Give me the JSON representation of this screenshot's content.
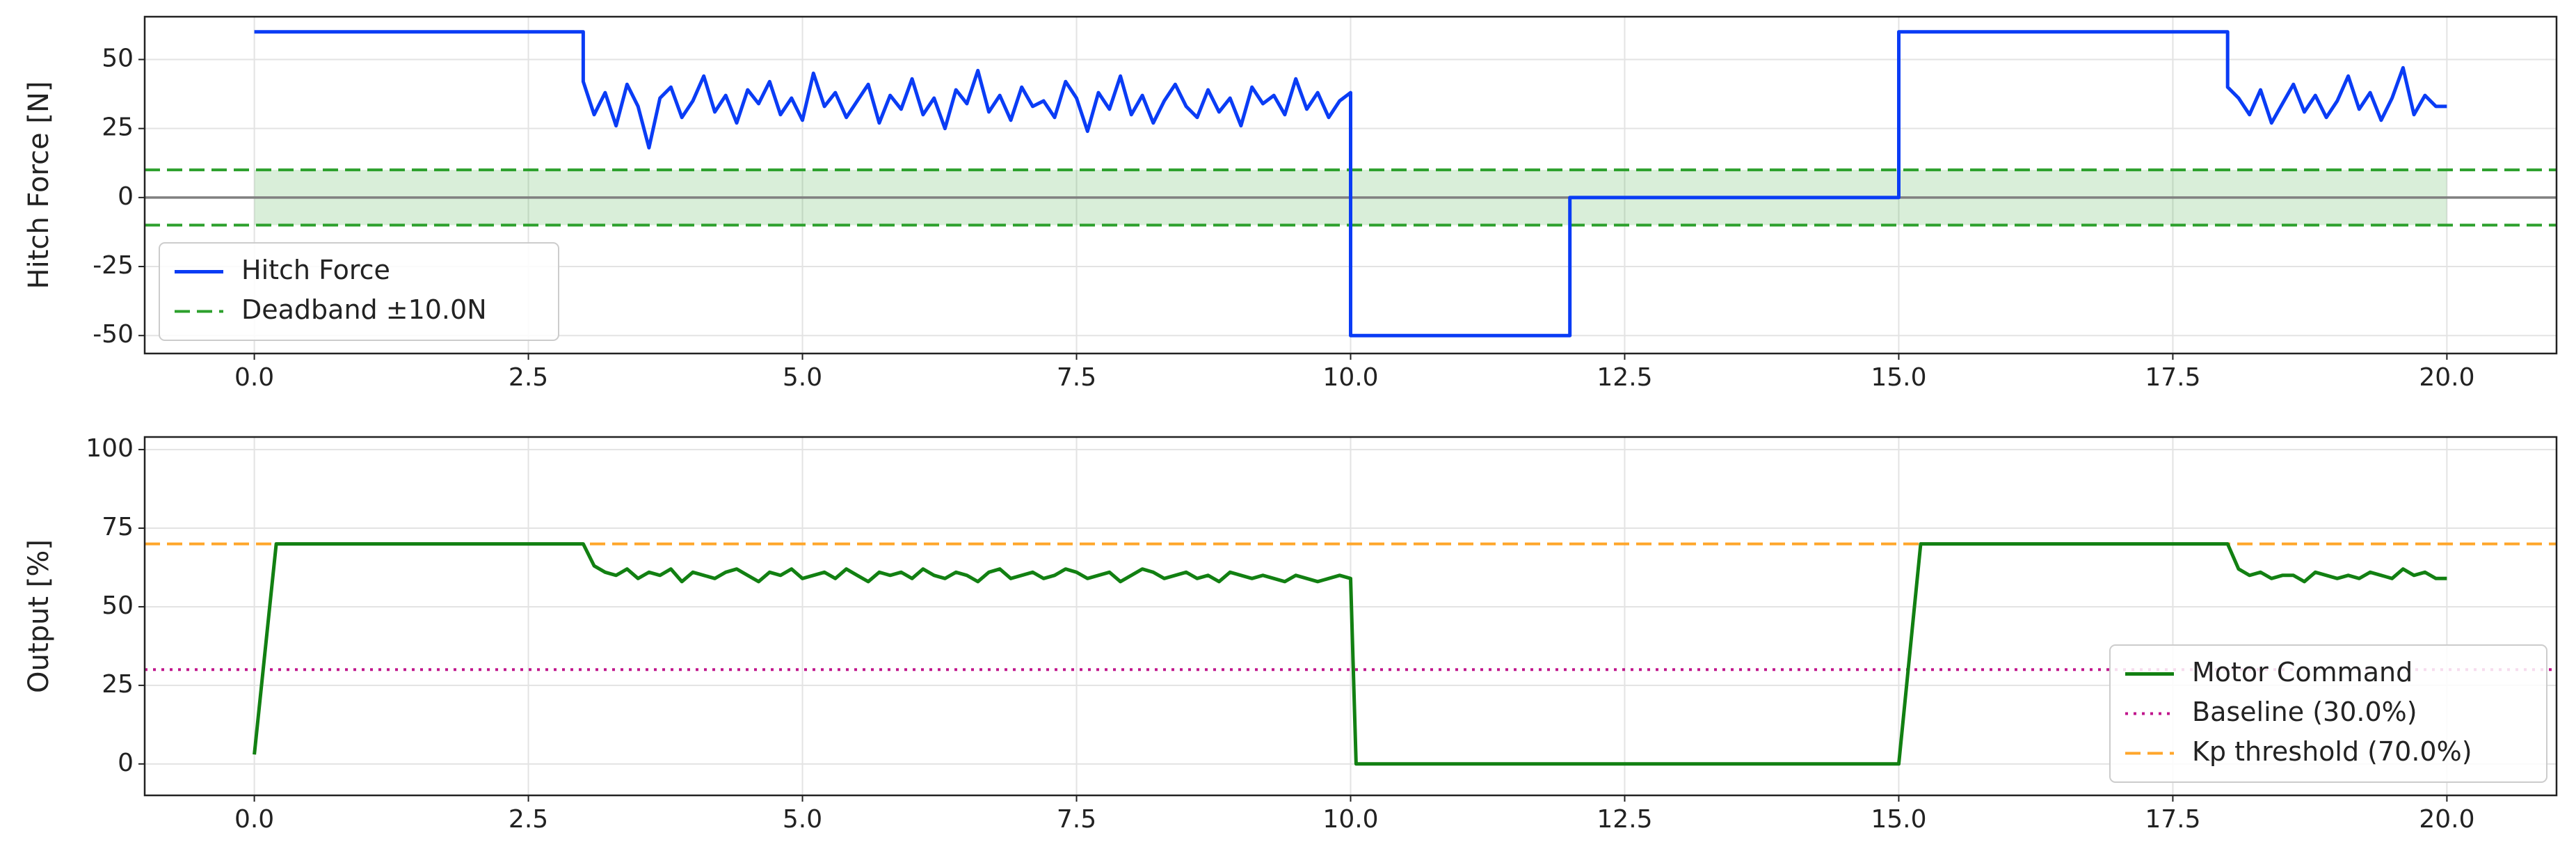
{
  "chart_data": [
    {
      "type": "line",
      "ylabel": "Hitch Force [N]",
      "x": [
        0,
        3,
        3,
        3.1,
        3.2,
        3.3,
        3.4,
        3.5,
        3.6,
        3.7,
        3.8,
        3.9,
        4.0,
        4.1,
        4.2,
        4.3,
        4.4,
        4.5,
        4.6,
        4.7,
        4.8,
        4.9,
        5.0,
        5.1,
        5.2,
        5.3,
        5.4,
        5.5,
        5.6,
        5.7,
        5.8,
        5.9,
        6.0,
        6.1,
        6.2,
        6.3,
        6.4,
        6.5,
        6.6,
        6.7,
        6.8,
        6.9,
        7.0,
        7.1,
        7.2,
        7.3,
        7.4,
        7.5,
        7.6,
        7.7,
        7.8,
        7.9,
        8.0,
        8.1,
        8.2,
        8.3,
        8.4,
        8.5,
        8.6,
        8.7,
        8.8,
        8.9,
        9.0,
        9.1,
        9.2,
        9.3,
        9.4,
        9.5,
        9.6,
        9.7,
        9.8,
        9.9,
        10,
        10,
        12,
        12,
        15,
        15,
        18,
        18,
        18.1,
        18.2,
        18.3,
        18.4,
        18.5,
        18.6,
        18.7,
        18.8,
        18.9,
        19.0,
        19.1,
        19.2,
        19.3,
        19.4,
        19.5,
        19.6,
        19.7,
        19.8,
        19.9,
        20.0
      ],
      "series": [
        {
          "name": "Hitch Force",
          "color": "#0a3cf5",
          "values": [
            60,
            60,
            42,
            30,
            38,
            26,
            41,
            33,
            18,
            36,
            40,
            29,
            35,
            44,
            31,
            37,
            27,
            39,
            34,
            42,
            30,
            36,
            28,
            45,
            33,
            38,
            29,
            35,
            41,
            27,
            37,
            32,
            43,
            30,
            36,
            25,
            39,
            34,
            46,
            31,
            37,
            28,
            40,
            33,
            35,
            29,
            42,
            36,
            24,
            38,
            32,
            44,
            30,
            37,
            27,
            35,
            41,
            33,
            29,
            39,
            31,
            36,
            26,
            40,
            34,
            37,
            30,
            43,
            32,
            38,
            29,
            35,
            38,
            -50,
            -50,
            0,
            0,
            60,
            60,
            40,
            36,
            30,
            39,
            27,
            34,
            41,
            31,
            37,
            29,
            35,
            44,
            32,
            38,
            28,
            36,
            47,
            30,
            37,
            33,
            33
          ]
        }
      ],
      "refs": [
        {
          "value": 0,
          "color": "#808080",
          "style": "solid"
        },
        {
          "name": "Deadband ±10.0N",
          "color": "#2ca02c",
          "style": "dashed",
          "values": [
            -10,
            10
          ],
          "fill": true
        }
      ],
      "xlim": [
        -1,
        21
      ],
      "ylim": [
        -56.5,
        65.5
      ],
      "xticks": [
        {
          "value": 0,
          "label": "0.0"
        },
        {
          "value": 2.5,
          "label": "2.5"
        },
        {
          "value": 5,
          "label": "5.0"
        },
        {
          "value": 7.5,
          "label": "7.5"
        },
        {
          "value": 10,
          "label": "10.0"
        },
        {
          "value": 12.5,
          "label": "12.5"
        },
        {
          "value": 15,
          "label": "15.0"
        },
        {
          "value": 17.5,
          "label": "17.5"
        },
        {
          "value": 20,
          "label": "20.0"
        }
      ],
      "yticks": [
        -50,
        -25,
        0,
        25,
        50
      ],
      "grid": true,
      "legend": "lower left"
    },
    {
      "type": "line",
      "ylabel": "Output [%]",
      "x": [
        0,
        0.2,
        3.0,
        3.1,
        3.2,
        3.3,
        3.4,
        3.5,
        3.6,
        3.7,
        3.8,
        3.9,
        4.0,
        4.1,
        4.2,
        4.3,
        4.4,
        4.5,
        4.6,
        4.7,
        4.8,
        4.9,
        5.0,
        5.1,
        5.2,
        5.3,
        5.4,
        5.5,
        5.6,
        5.7,
        5.8,
        5.9,
        6.0,
        6.1,
        6.2,
        6.3,
        6.4,
        6.5,
        6.6,
        6.7,
        6.8,
        6.9,
        7.0,
        7.1,
        7.2,
        7.3,
        7.4,
        7.5,
        7.6,
        7.7,
        7.8,
        7.9,
        8.0,
        8.1,
        8.2,
        8.3,
        8.4,
        8.5,
        8.6,
        8.7,
        8.8,
        8.9,
        9.0,
        9.1,
        9.2,
        9.3,
        9.4,
        9.5,
        9.6,
        9.7,
        9.8,
        9.9,
        10.0,
        10.05,
        15.0,
        15.2,
        18.0,
        18.1,
        18.2,
        18.3,
        18.4,
        18.5,
        18.6,
        18.7,
        18.8,
        18.9,
        19.0,
        19.1,
        19.2,
        19.3,
        19.4,
        19.5,
        19.6,
        19.7,
        19.8,
        19.9,
        20.0
      ],
      "series": [
        {
          "name": "Motor Command",
          "color": "#128012",
          "values": [
            3,
            70,
            70,
            63,
            61,
            60,
            62,
            59,
            61,
            60,
            62,
            58,
            61,
            60,
            59,
            61,
            62,
            60,
            58,
            61,
            60,
            62,
            59,
            60,
            61,
            59,
            62,
            60,
            58,
            61,
            60,
            61,
            59,
            62,
            60,
            59,
            61,
            60,
            58,
            61,
            62,
            59,
            60,
            61,
            59,
            60,
            62,
            61,
            59,
            60,
            61,
            58,
            60,
            62,
            61,
            59,
            60,
            61,
            59,
            60,
            58,
            61,
            60,
            59,
            60,
            59,
            58,
            60,
            59,
            58,
            59,
            60,
            59,
            0,
            0,
            70,
            70,
            62,
            60,
            61,
            59,
            60,
            60,
            58,
            61,
            60,
            59,
            60,
            59,
            61,
            60,
            59,
            62,
            60,
            61,
            59,
            59
          ]
        }
      ],
      "refs": [
        {
          "name": "Baseline (30.0%)",
          "color": "#c0168c",
          "style": "dotted",
          "values": [
            30
          ]
        },
        {
          "name": "Kp threshold (70.0%)",
          "color": "#ffa62b",
          "style": "dashed",
          "values": [
            70
          ]
        }
      ],
      "xlim": [
        -1,
        21
      ],
      "ylim": [
        -10,
        104
      ],
      "xticks": [
        {
          "value": 0,
          "label": "0.0"
        },
        {
          "value": 2.5,
          "label": "2.5"
        },
        {
          "value": 5,
          "label": "5.0"
        },
        {
          "value": 7.5,
          "label": "7.5"
        },
        {
          "value": 10,
          "label": "10.0"
        },
        {
          "value": 12.5,
          "label": "12.5"
        },
        {
          "value": 15,
          "label": "15.0"
        },
        {
          "value": 17.5,
          "label": "17.5"
        },
        {
          "value": 20,
          "label": "20.0"
        }
      ],
      "yticks": [
        0,
        25,
        50,
        75,
        100
      ],
      "grid": true,
      "legend": "lower right"
    }
  ]
}
